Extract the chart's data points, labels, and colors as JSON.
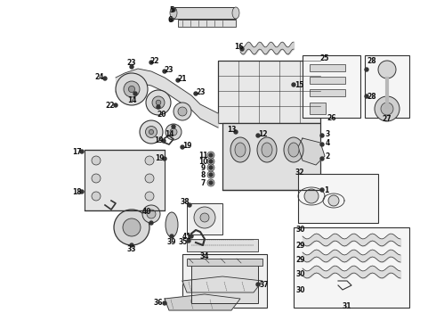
{
  "bg_color": "#ffffff",
  "line_color": "#333333",
  "label_color": "#111111",
  "fig_width": 4.9,
  "fig_height": 3.6,
  "dpi": 100,
  "label_fontsize": 5.5
}
